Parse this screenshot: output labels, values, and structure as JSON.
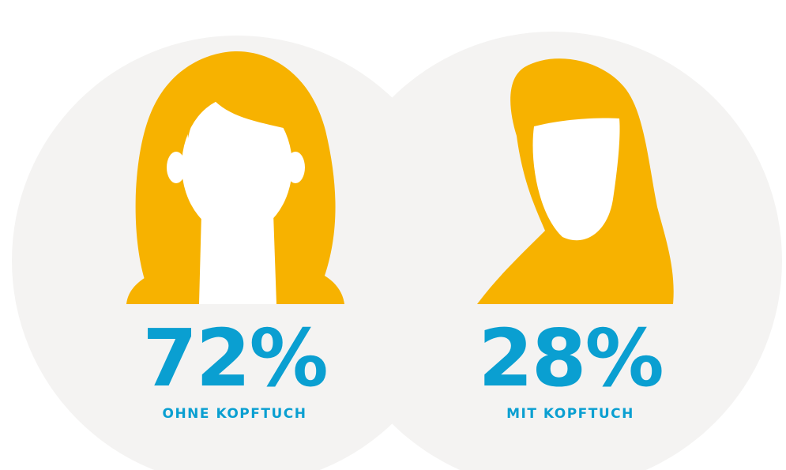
{
  "items": [
    {
      "percent": "72%",
      "label": "OHNE KOPFTUCH"
    },
    {
      "percent": "28%",
      "label": "MIT KOPFTUCH"
    }
  ]
}
